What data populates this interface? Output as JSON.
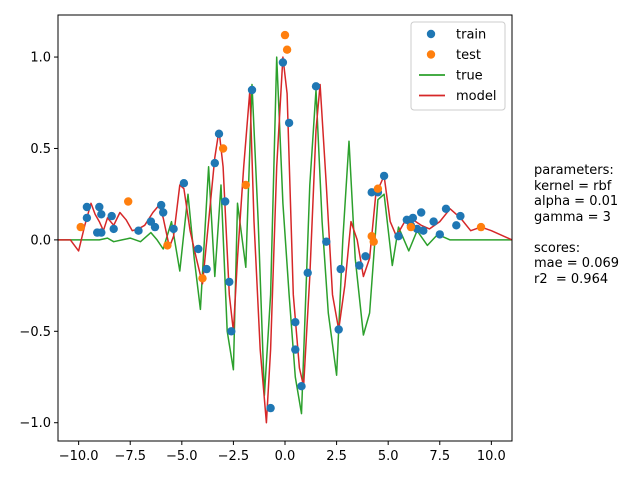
{
  "chart_data": {
    "type": "scatter",
    "title": "",
    "xlabel": "",
    "ylabel": "",
    "xlim": [
      -11,
      11
    ],
    "ylim": [
      -1.1,
      1.23
    ],
    "xticks": [
      -10.0,
      -7.5,
      -5.0,
      -2.5,
      0.0,
      2.5,
      5.0,
      7.5,
      10.0
    ],
    "xtick_labels": [
      "−10.0",
      "−7.5",
      "−5.0",
      "−2.5",
      "0.0",
      "2.5",
      "5.0",
      "7.5",
      "10.0"
    ],
    "yticks": [
      -1.0,
      -0.5,
      0.0,
      0.5,
      1.0
    ],
    "ytick_labels": [
      "−1.0",
      "−0.5",
      "0.0",
      "0.5",
      "1.0"
    ],
    "grid": false,
    "legend_position": "top-right",
    "series": [
      {
        "name": "train",
        "kind": "scatter",
        "color": "#1f77b4",
        "x": [
          -9.6,
          -9.6,
          -9.1,
          -9.0,
          -8.9,
          -8.9,
          -8.4,
          -8.3,
          -7.1,
          -6.5,
          -6.3,
          -6.0,
          -5.9,
          -5.4,
          -4.9,
          -4.2,
          -3.8,
          -3.4,
          -3.2,
          -2.9,
          -2.7,
          -2.6,
          -1.6,
          -0.7,
          -0.1,
          0.2,
          0.5,
          0.5,
          0.8,
          1.1,
          1.5,
          2.0,
          2.6,
          2.7,
          3.6,
          3.9,
          4.2,
          4.5,
          4.8,
          5.5,
          5.9,
          6.1,
          6.2,
          6.4,
          6.6,
          6.7,
          7.2,
          7.5,
          7.8,
          8.3,
          8.5
        ],
        "y": [
          0.18,
          0.12,
          0.04,
          0.18,
          0.14,
          0.04,
          0.13,
          0.06,
          0.05,
          0.1,
          0.07,
          0.19,
          0.15,
          0.06,
          0.31,
          -0.05,
          -0.16,
          0.42,
          0.58,
          0.21,
          -0.23,
          -0.5,
          0.82,
          -0.92,
          0.97,
          0.64,
          -0.45,
          -0.6,
          -0.8,
          -0.18,
          0.84,
          -0.01,
          -0.49,
          -0.16,
          -0.14,
          -0.09,
          0.26,
          0.26,
          0.35,
          0.02,
          0.11,
          0.08,
          0.12,
          0.06,
          0.15,
          0.05,
          0.1,
          0.03,
          0.17,
          0.08,
          0.13
        ]
      },
      {
        "name": "test",
        "kind": "scatter",
        "color": "#ff7f0e",
        "x": [
          -9.9,
          -7.6,
          -5.7,
          -4.0,
          -3.0,
          -1.9,
          0.0,
          0.1,
          4.2,
          4.3,
          4.5,
          6.1,
          9.5
        ],
        "y": [
          0.07,
          0.21,
          -0.03,
          -0.21,
          0.5,
          0.3,
          1.12,
          1.04,
          0.02,
          -0.01,
          0.28,
          0.07,
          0.07
        ]
      },
      {
        "name": "true",
        "kind": "line",
        "color": "#2ca02c",
        "x": [
          -11,
          -10,
          -9,
          -8.6,
          -8.3,
          -7.9,
          -7.5,
          -7,
          -6.5,
          -6.2,
          -5.9,
          -5.5,
          -5.1,
          -4.7,
          -4.4,
          -4.1,
          -3.7,
          -3.4,
          -3.1,
          -2.8,
          -2.5,
          -2.3,
          -1.9,
          -1.6,
          -1.3,
          -1.0,
          -0.7,
          -0.4,
          -0.1,
          0.2,
          0.5,
          0.8,
          1.2,
          1.5,
          1.8,
          2.1,
          2.5,
          2.8,
          3.1,
          3.4,
          3.8,
          4.1,
          4.5,
          4.8,
          5.2,
          5.5,
          6.0,
          6.4,
          6.9,
          7.4,
          8.0,
          9.0,
          10.0,
          11
        ],
        "y": [
          0,
          0,
          0,
          0.01,
          -0.01,
          0,
          0.01,
          -0.01,
          0.04,
          0,
          -0.05,
          0.1,
          -0.17,
          0.25,
          -0.1,
          -0.38,
          0.4,
          -0.2,
          0.3,
          -0.5,
          -0.71,
          0.2,
          -0.15,
          0.85,
          0.1,
          -0.85,
          -0.3,
          1.0,
          0.2,
          -0.3,
          -0.75,
          -0.95,
          0.3,
          0.82,
          0.1,
          -0.4,
          -0.74,
          0.0,
          0.54,
          -0.1,
          -0.52,
          -0.4,
          0.22,
          0.25,
          -0.14,
          0.07,
          -0.06,
          0.05,
          -0.03,
          0.03,
          0,
          0,
          0,
          0
        ]
      },
      {
        "name": "model",
        "kind": "line",
        "color": "#d62728",
        "x": [
          -11,
          -10.4,
          -10.0,
          -9.7,
          -9.4,
          -9.2,
          -9.0,
          -8.8,
          -8.6,
          -8.3,
          -8.0,
          -7.7,
          -7.4,
          -7.1,
          -6.8,
          -6.4,
          -6.1,
          -5.9,
          -5.6,
          -5.4,
          -5.1,
          -4.9,
          -4.6,
          -4.3,
          -4.0,
          -3.7,
          -3.4,
          -3.2,
          -3.0,
          -2.7,
          -2.5,
          -2.3,
          -2.0,
          -1.7,
          -1.5,
          -1.2,
          -0.9,
          -0.7,
          -0.4,
          -0.1,
          0.1,
          0.4,
          0.7,
          0.9,
          1.2,
          1.5,
          1.7,
          2.0,
          2.3,
          2.6,
          2.9,
          3.2,
          3.5,
          3.8,
          4.1,
          4.4,
          4.8,
          5.1,
          5.4,
          5.8,
          6.2,
          6.6,
          7.0,
          7.5,
          8.0,
          8.5,
          9.0,
          9.5,
          10,
          11
        ],
        "y": [
          0,
          0,
          -0.06,
          0.08,
          0.2,
          0.14,
          0.1,
          0.05,
          0.12,
          0.08,
          0.15,
          0.11,
          0.05,
          0.06,
          0.08,
          0.15,
          0.19,
          0.12,
          -0.04,
          0.02,
          0.3,
          0.28,
          0.05,
          -0.1,
          -0.24,
          0.1,
          0.45,
          0.6,
          0.4,
          -0.3,
          -0.5,
          -0.1,
          0.4,
          0.82,
          0.1,
          -0.6,
          -1.0,
          -0.6,
          0.4,
          1.0,
          0.8,
          -0.3,
          -0.7,
          -0.8,
          -0.2,
          0.6,
          0.85,
          0.3,
          -0.3,
          -0.49,
          -0.25,
          0.1,
          0.0,
          -0.2,
          -0.1,
          0.25,
          0.35,
          0.1,
          0.02,
          0.1,
          0.11,
          0.08,
          0.06,
          0.1,
          0.17,
          0.12,
          0.05,
          0.07,
          0.05,
          0
        ]
      }
    ]
  },
  "side_panel": {
    "heading": "parameters:",
    "kernel_line": "kernel = rbf",
    "alpha_line": "alpha = 0.01",
    "gamma_line": "gamma = 3",
    "blank": "",
    "scores_heading": "scores:",
    "mae_line": "mae = 0.069",
    "r2_line": "r2  = 0.964"
  }
}
